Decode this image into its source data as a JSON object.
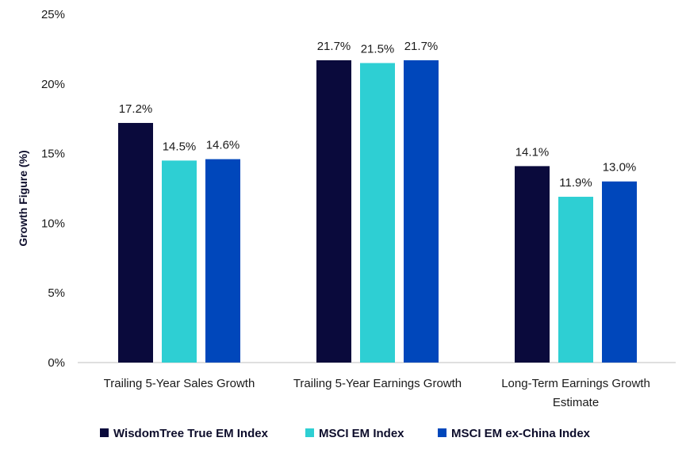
{
  "chart_data": {
    "type": "bar",
    "title": "",
    "xlabel": "",
    "ylabel": "Growth Figure (%)",
    "ylim": [
      0,
      25
    ],
    "yticks": [
      "0%",
      "5%",
      "10%",
      "15%",
      "20%",
      "25%"
    ],
    "categories": [
      [
        "Trailing 5-Year Sales Growth"
      ],
      [
        "Trailing 5-Year Earnings Growth"
      ],
      [
        "Long-Term Earnings Growth",
        "Estimate"
      ]
    ],
    "series": [
      {
        "name": "WisdomTree True EM Index",
        "color": "#0a0a3c",
        "values": [
          17.2,
          21.7,
          14.1
        ],
        "labels": [
          "17.2%",
          "21.7%",
          "14.1%"
        ]
      },
      {
        "name": "MSCI EM Index",
        "color": "#2ecfd3",
        "values": [
          14.5,
          21.5,
          11.9
        ],
        "labels": [
          "14.5%",
          "21.5%",
          "11.9%"
        ]
      },
      {
        "name": "MSCI EM ex-China Index",
        "color": "#0047bb",
        "values": [
          14.6,
          21.7,
          13.0
        ],
        "labels": [
          "14.6%",
          "21.7%",
          "13.0%"
        ]
      }
    ],
    "legend_position": "bottom",
    "grid": false
  }
}
